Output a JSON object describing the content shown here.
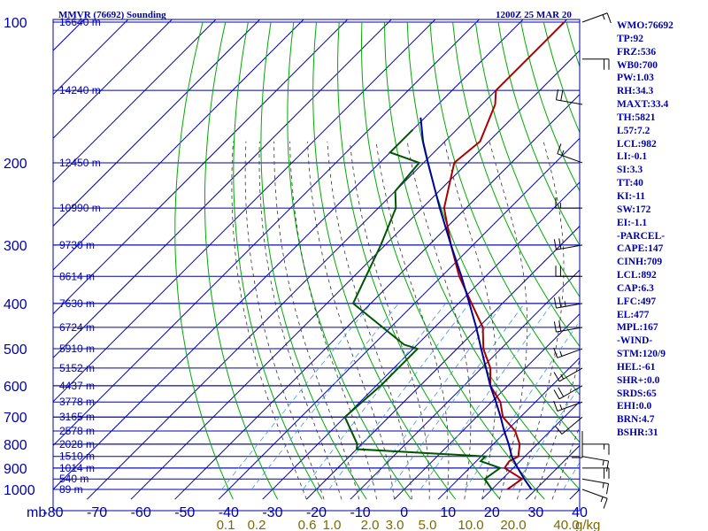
{
  "title": "MMVR (76692) Sounding",
  "time": "1200Z 25 MAR 20",
  "stats": [
    "WMO:76692",
    "TP:92",
    "FRZ:536",
    "WB0:700",
    "PW:1.03",
    "RH:34.3",
    "MAXT:33.4",
    "TH:5821",
    "L57:7.2",
    "LCL:982",
    "LI:-0.1",
    "SI:3.3",
    "TT:40",
    "KI:-11",
    "SW:172",
    "EI:-1.1",
    "-PARCEL-",
    "CAPE:147",
    "CINH:709",
    "LCL:892",
    "CAP:6.3",
    "LFC:497",
    "EL:477",
    "MPL:167",
    "-WIND-",
    "STM:120/9",
    "HEL:-61",
    "SHR+:0.0",
    "SRDS:65",
    "EHI:0.0",
    "BRN:4.7",
    "BSHR:31"
  ],
  "colors": {
    "temperature": "#aa0000",
    "dewpoint": "#005500",
    "parcel": "#000099",
    "isotherm": "#0000aa",
    "dry_adiabat": "#00aa00",
    "moist_adiabat": "#333333",
    "mixing_ratio": "#4499dd"
  },
  "chart_data": {
    "type": "line",
    "title": "MMVR (76692) Sounding",
    "subtitle": "1200Z 25 MAR 20",
    "xlabel": "",
    "ylabel": "mb",
    "y_scale": "log",
    "xlim": [
      -80,
      40
    ],
    "ylim": [
      1000,
      100
    ],
    "pressure_ticks": [
      100,
      200,
      300,
      400,
      500,
      600,
      700,
      800,
      900,
      1000
    ],
    "temperature_ticks": [
      -80,
      -70,
      -60,
      -50,
      -40,
      -30,
      -20,
      -10,
      0,
      10,
      20,
      30,
      40
    ],
    "mixing_ratio_labels": [
      "0.1",
      "0.2",
      "0.6",
      "1.0",
      "2.0",
      "3.0",
      "5.0",
      "10.0",
      "20.0",
      "40.0"
    ],
    "mixing_ratio_unit": "g/kg",
    "height_levels": [
      {
        "p": 100,
        "label": "16640 m"
      },
      {
        "p": 140,
        "label": "14240 m"
      },
      {
        "p": 200,
        "label": "12450 m"
      },
      {
        "p": 250,
        "label": "10990 m"
      },
      {
        "p": 300,
        "label": "9730 m"
      },
      {
        "p": 350,
        "label": "8614 m"
      },
      {
        "p": 400,
        "label": "7630 m"
      },
      {
        "p": 450,
        "label": "6724 m"
      },
      {
        "p": 500,
        "label": "5910 m"
      },
      {
        "p": 550,
        "label": "5152 m"
      },
      {
        "p": 600,
        "label": "4437 m"
      },
      {
        "p": 650,
        "label": "3778 m"
      },
      {
        "p": 700,
        "label": "3165 m"
      },
      {
        "p": 750,
        "label": "2578 m"
      },
      {
        "p": 800,
        "label": "2028 m"
      },
      {
        "p": 850,
        "label": "1510 m"
      },
      {
        "p": 900,
        "label": "1014 m"
      },
      {
        "p": 950,
        "label": "540 m"
      },
      {
        "p": 1000,
        "label": "89 m"
      }
    ],
    "series": [
      {
        "name": "temperature",
        "points": [
          [
            1000,
            23.5
          ],
          [
            950,
            24.5
          ],
          [
            900,
            18
          ],
          [
            870,
            17.5
          ],
          [
            850,
            18.5
          ],
          [
            800,
            16
          ],
          [
            750,
            12
          ],
          [
            700,
            6
          ],
          [
            650,
            2
          ],
          [
            600,
            -4
          ],
          [
            550,
            -8
          ],
          [
            500,
            -14
          ],
          [
            450,
            -19
          ],
          [
            400,
            -27
          ],
          [
            350,
            -36
          ],
          [
            300,
            -45
          ],
          [
            250,
            -55
          ],
          [
            200,
            -63
          ],
          [
            180,
            -62
          ],
          [
            150,
            -67
          ],
          [
            140,
            -70
          ],
          [
            110,
            -70
          ],
          [
            100,
            -70
          ]
        ]
      },
      {
        "name": "dewpoint",
        "points": [
          [
            1000,
            20
          ],
          [
            950,
            16
          ],
          [
            900,
            17
          ],
          [
            870,
            11
          ],
          [
            850,
            11
          ],
          [
            820,
            -20
          ],
          [
            800,
            -21
          ],
          [
            700,
            -30
          ],
          [
            600,
            -29
          ],
          [
            500,
            -29
          ],
          [
            490,
            -33
          ],
          [
            400,
            -54
          ],
          [
            300,
            -61
          ],
          [
            250,
            -66
          ],
          [
            230,
            -70
          ],
          [
            200,
            -71
          ],
          [
            190,
            -80
          ],
          [
            170,
            -80
          ]
        ]
      },
      {
        "name": "parcel",
        "points": [
          [
            1000,
            29
          ],
          [
            950,
            25
          ],
          [
            900,
            21
          ],
          [
            850,
            17
          ],
          [
            800,
            13.5
          ],
          [
            750,
            9.5
          ],
          [
            700,
            5.5
          ],
          [
            650,
            1
          ],
          [
            600,
            -4
          ],
          [
            550,
            -9
          ],
          [
            500,
            -14.5
          ],
          [
            450,
            -20.5
          ],
          [
            400,
            -27.5
          ],
          [
            350,
            -35.5
          ],
          [
            300,
            -45
          ],
          [
            250,
            -56
          ],
          [
            200,
            -69
          ],
          [
            180,
            -75
          ],
          [
            160,
            -81
          ]
        ]
      }
    ],
    "wind_barbs": [
      {
        "p": 1000,
        "dir": 110,
        "kt": 15
      },
      {
        "p": 950,
        "dir": 100,
        "kt": 15
      },
      {
        "p": 900,
        "dir": 90,
        "kt": 20
      },
      {
        "p": 850,
        "dir": 100,
        "kt": 15
      },
      {
        "p": 800,
        "dir": 90,
        "kt": 15
      },
      {
        "p": 750,
        "dir": 180,
        "kt": 10
      },
      {
        "p": 700,
        "dir": 230,
        "kt": 10
      },
      {
        "p": 650,
        "dir": 250,
        "kt": 15
      },
      {
        "p": 600,
        "dir": 240,
        "kt": 20
      },
      {
        "p": 550,
        "dir": 240,
        "kt": 15
      },
      {
        "p": 500,
        "dir": 250,
        "kt": 15
      },
      {
        "p": 450,
        "dir": 260,
        "kt": 20
      },
      {
        "p": 400,
        "dir": 260,
        "kt": 25
      },
      {
        "p": 350,
        "dir": 270,
        "kt": 20
      },
      {
        "p": 300,
        "dir": 260,
        "kt": 20
      },
      {
        "p": 250,
        "dir": 270,
        "kt": 15
      },
      {
        "p": 200,
        "dir": 290,
        "kt": 15
      },
      {
        "p": 150,
        "dir": 280,
        "kt": 20
      },
      {
        "p": 120,
        "dir": 90,
        "kt": 20
      },
      {
        "p": 100,
        "dir": 70,
        "kt": 15
      }
    ]
  }
}
